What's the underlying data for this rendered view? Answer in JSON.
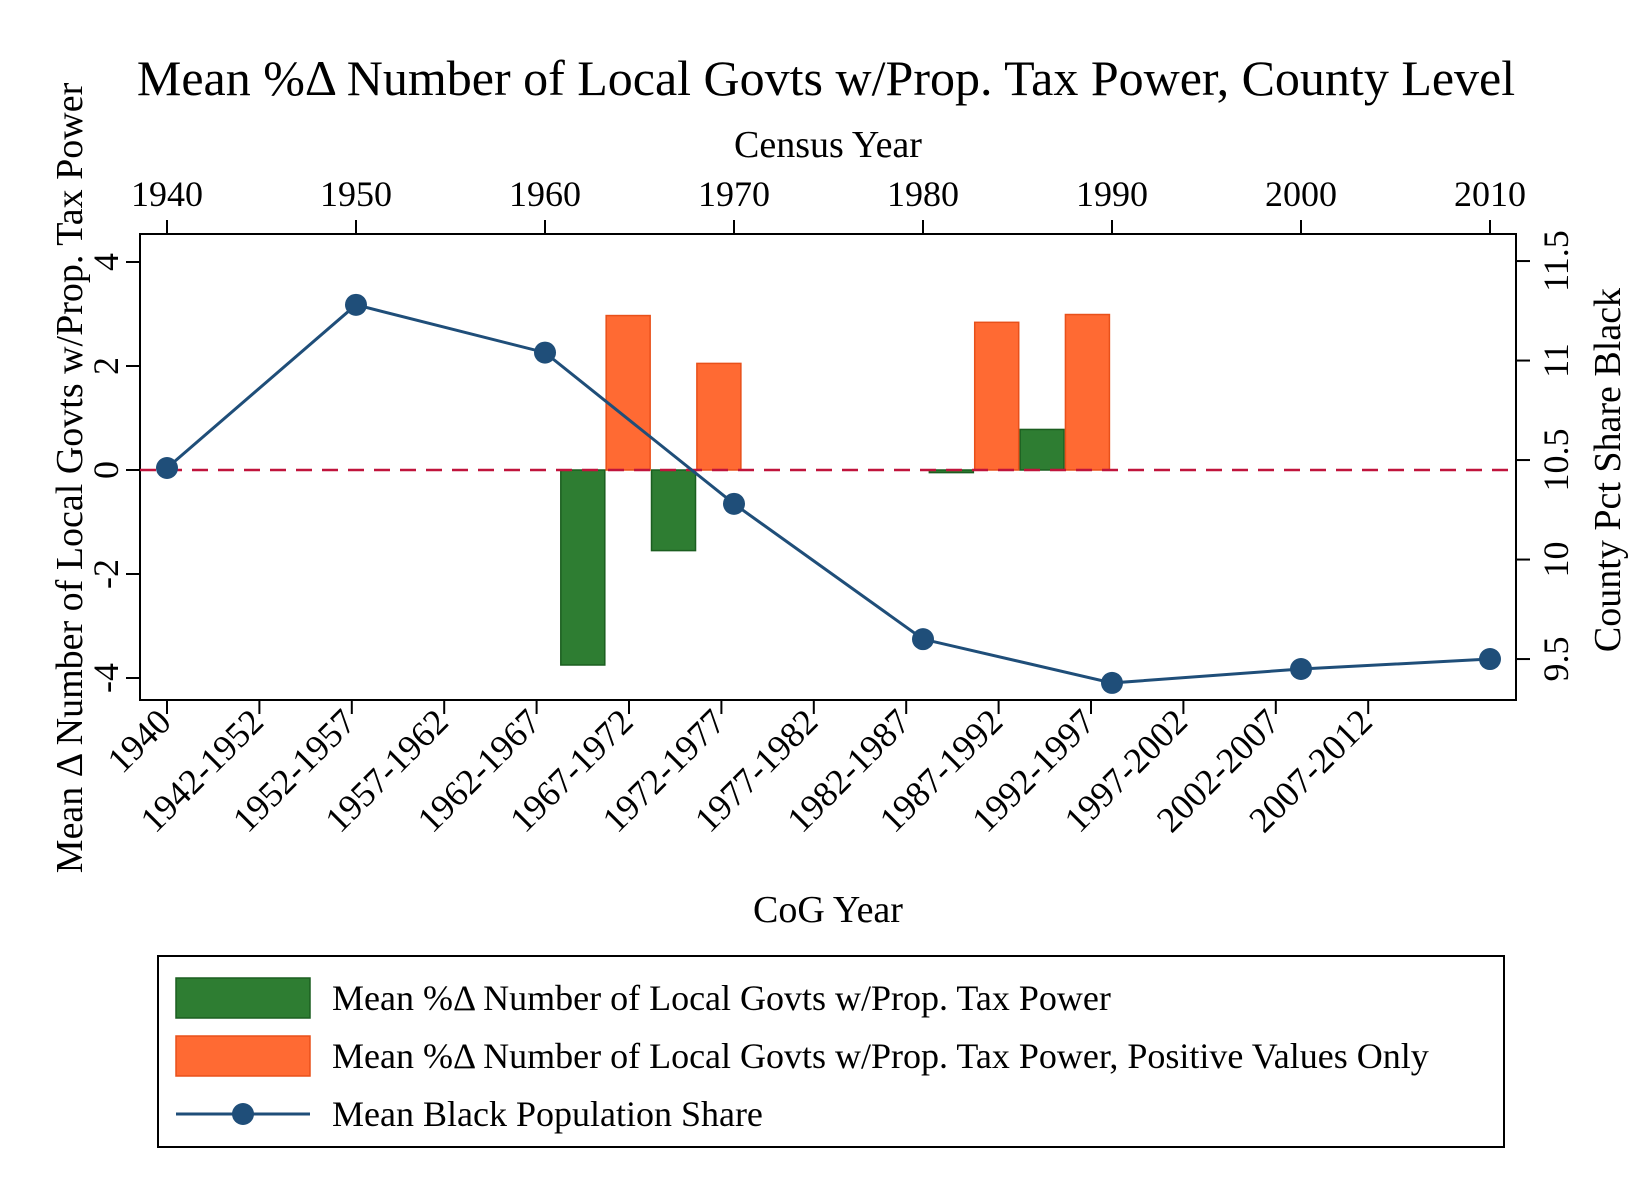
{
  "chart_data": {
    "type": "bar",
    "title": "Mean %Δ Number of Local Govts w/Prop. Tax Power, County Level",
    "top_axis": {
      "label": "Census Year",
      "ticks": [
        "1940",
        "1950",
        "1960",
        "1970",
        "1980",
        "1990",
        "2000",
        "2010"
      ]
    },
    "xlabel": "CoG Year",
    "categories": [
      "1940",
      "1942-1952",
      "1952-1957",
      "1957-1962",
      "1962-1967",
      "1967-1972",
      "1972-1977",
      "1977-1982",
      "1982-1987",
      "1987-1992",
      "1992-1997",
      "1997-2002",
      "2002-2007",
      "2007-2012"
    ],
    "ylabel_left": "Mean Δ Number of Local Govts w/Prop. Tax Power",
    "ylim_left": [
      -4.4,
      4.4
    ],
    "yticks_left": [
      "-4",
      "-2",
      "0",
      "2",
      "4"
    ],
    "ylabel_right": "County Pct Share Black",
    "ylim_right": [
      9.35,
      11.6
    ],
    "yticks_right": [
      "9.5",
      "10",
      "10.5",
      "11",
      "11.5"
    ],
    "reference_line": {
      "y": 0,
      "style": "dashed",
      "color": "#c0143c"
    },
    "series": [
      {
        "name": "Mean %Δ Number of Local Govts w/Prop. Tax Power",
        "kind": "bar",
        "color": "#2e7d32",
        "x": [
          1962.0,
          1966.8,
          1981.5,
          1986.3
        ],
        "values": [
          -3.75,
          -1.55,
          -0.05,
          0.78
        ]
      },
      {
        "name": "Mean %Δ Number of Local Govts w/Prop. Tax Power, Positive Values Only",
        "kind": "bar",
        "color": "#ff6a33",
        "x": [
          1964.4,
          1969.2,
          1983.9,
          1988.7
        ],
        "values": [
          2.97,
          2.05,
          2.84,
          2.99
        ]
      },
      {
        "name": "Mean Black Population Share",
        "kind": "line",
        "color": "#1f4e79",
        "x": [
          1940,
          1950,
          1960,
          1970,
          1980,
          1990,
          2000,
          2010
        ],
        "values": [
          10.46,
          11.28,
          11.04,
          10.28,
          9.6,
          9.38,
          9.45,
          9.5
        ]
      }
    ],
    "legend": {
      "placement": "bottom",
      "entries": [
        "Mean %Δ Number of Local Govts w/Prop. Tax Power",
        "Mean %Δ Number of Local Govts w/Prop. Tax Power, Positive Values Only",
        "Mean Black Population Share"
      ]
    },
    "grid": false
  }
}
